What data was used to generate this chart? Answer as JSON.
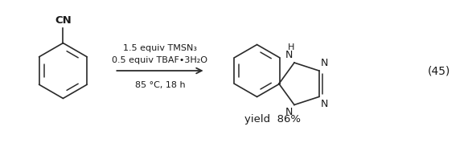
{
  "background_color": "#ffffff",
  "fig_width": 5.87,
  "fig_height": 1.78,
  "dpi": 100,
  "condition_line1": "1.5 equiv TMSN₃",
  "condition_line2": "0.5 equiv TBAF•3H₂O",
  "condition_line3": "85 °C, 18 h",
  "yield_text": "yield  86%",
  "equation_number": "(45)",
  "font_size_conditions": 8.0,
  "font_size_yield": 9.5,
  "font_size_eq": 10,
  "font_size_N": 9,
  "font_size_H": 8,
  "font_size_CN": 9.5,
  "line_color": "#2a2a2a",
  "text_color": "#1a1a1a"
}
